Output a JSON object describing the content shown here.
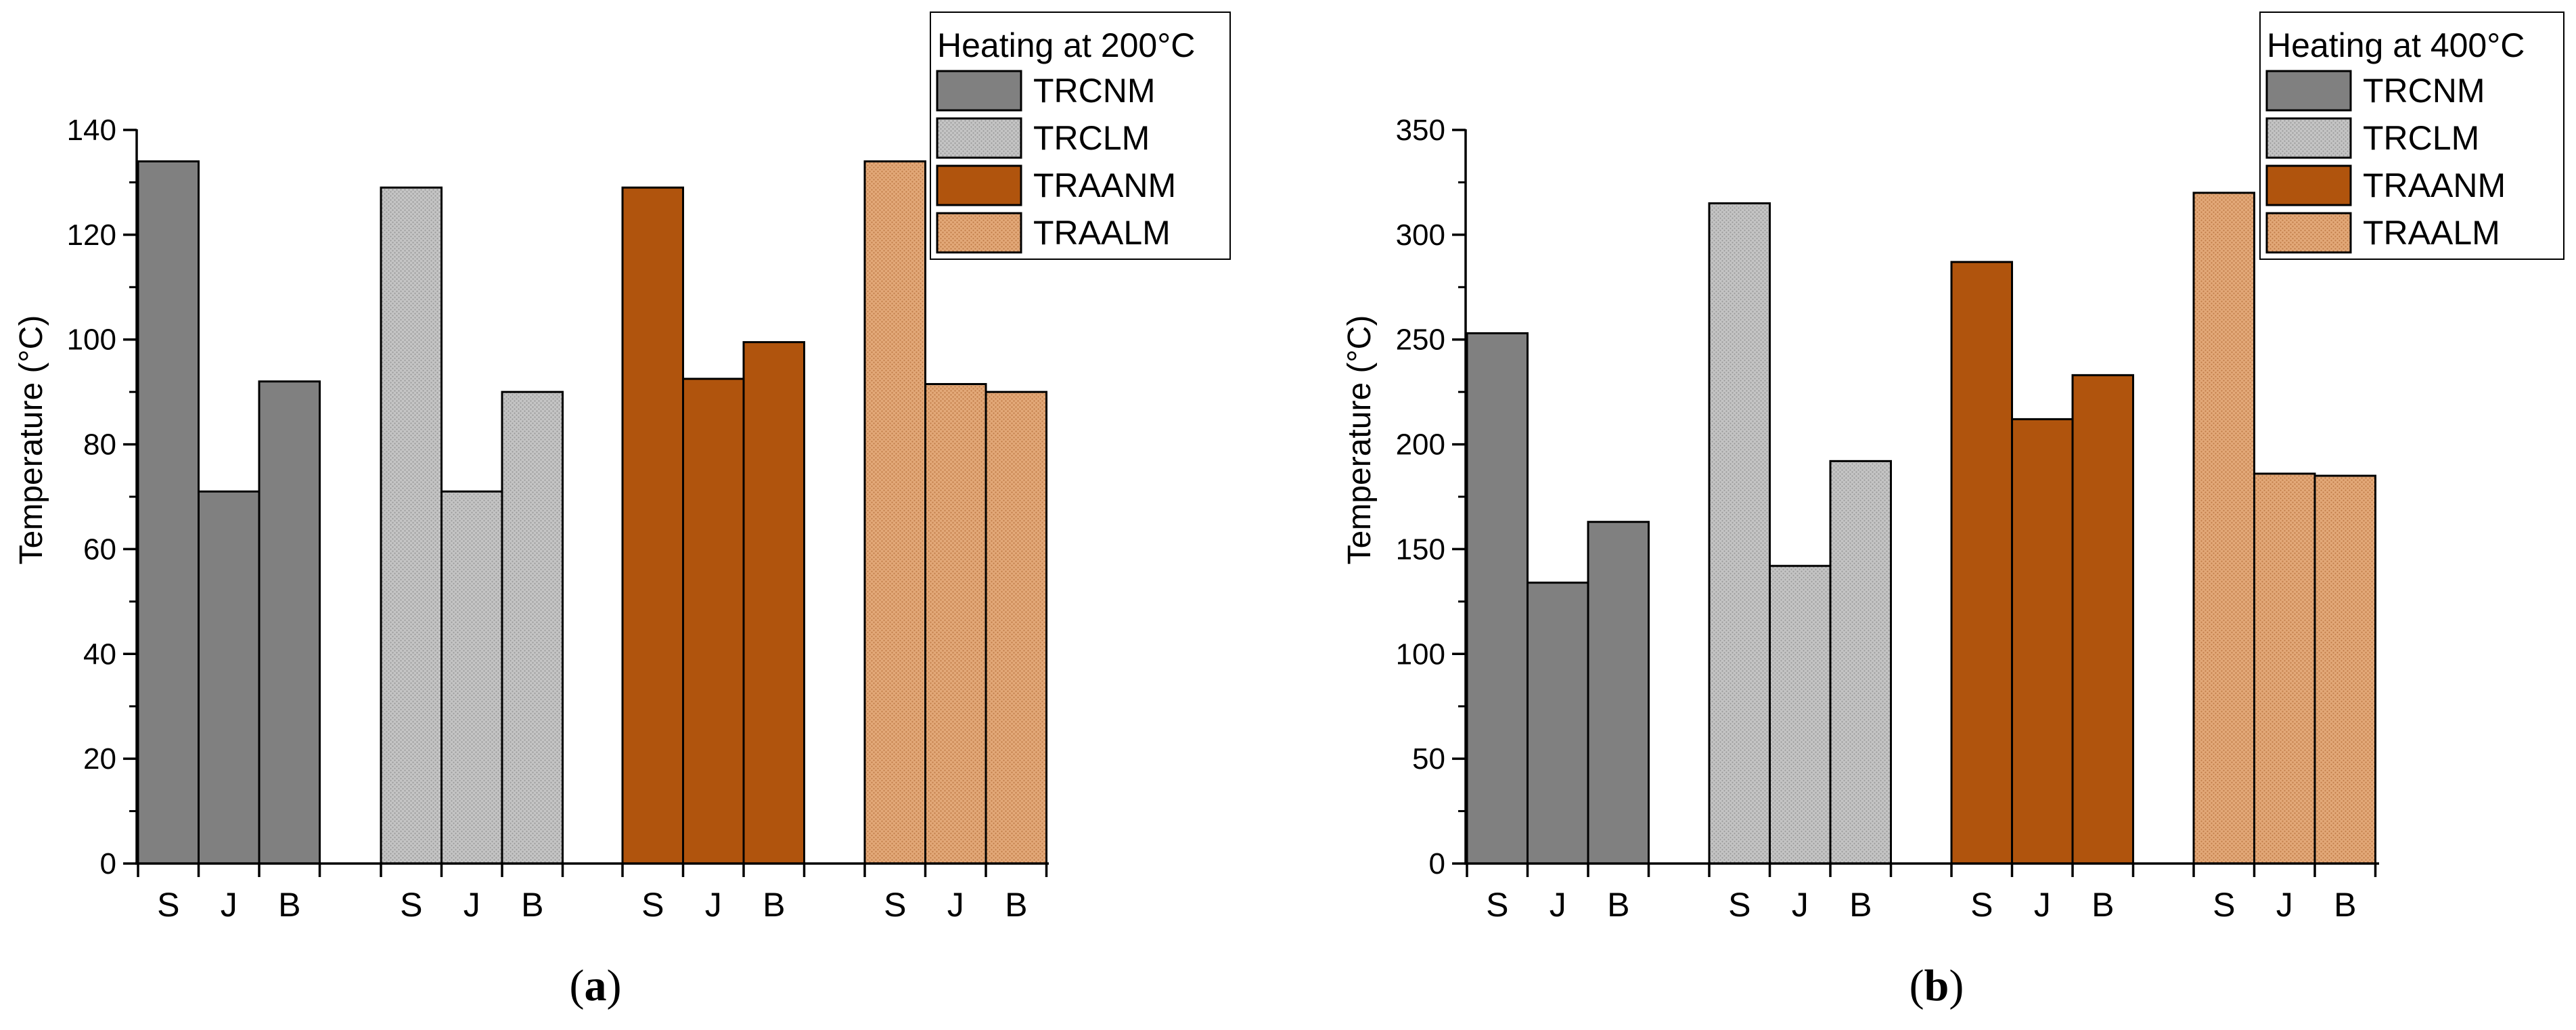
{
  "colors": {
    "TRCNM": "#808080",
    "TRCLM": "#bdbdbd",
    "TRAANM": "#b0540d",
    "TRAALM": "#dc9e6e"
  },
  "chart_data": [
    {
      "type": "bar",
      "panel_label": "a",
      "ylabel": "Temperature (°C)",
      "ylim": [
        0,
        140
      ],
      "yticks": [
        0,
        20,
        40,
        60,
        80,
        100,
        120,
        140
      ],
      "categories": [
        "S",
        "J",
        "B"
      ],
      "legend": {
        "title": "Heating at 200°C",
        "placement": "top-right"
      },
      "groups": [
        {
          "name": "TRCNM",
          "values": [
            134,
            71,
            92
          ]
        },
        {
          "name": "TRCLM",
          "values": [
            129,
            71,
            90
          ]
        },
        {
          "name": "TRAANM",
          "values": [
            129,
            92.5,
            99.5
          ]
        },
        {
          "name": "TRAALM",
          "values": [
            134,
            91.5,
            90
          ]
        }
      ]
    },
    {
      "type": "bar",
      "panel_label": "b",
      "ylabel": "Temperature (°C)",
      "ylim": [
        0,
        350
      ],
      "yticks": [
        0,
        50,
        100,
        150,
        200,
        250,
        300,
        350
      ],
      "categories": [
        "S",
        "J",
        "B"
      ],
      "legend": {
        "title": "Heating at 400°C",
        "placement": "top-right"
      },
      "groups": [
        {
          "name": "TRCNM",
          "values": [
            253,
            134,
            163
          ]
        },
        {
          "name": "TRCLM",
          "values": [
            315,
            142,
            192
          ]
        },
        {
          "name": "TRAANM",
          "values": [
            287,
            212,
            233
          ]
        },
        {
          "name": "TRAALM",
          "values": [
            320,
            186,
            185
          ]
        }
      ]
    }
  ]
}
